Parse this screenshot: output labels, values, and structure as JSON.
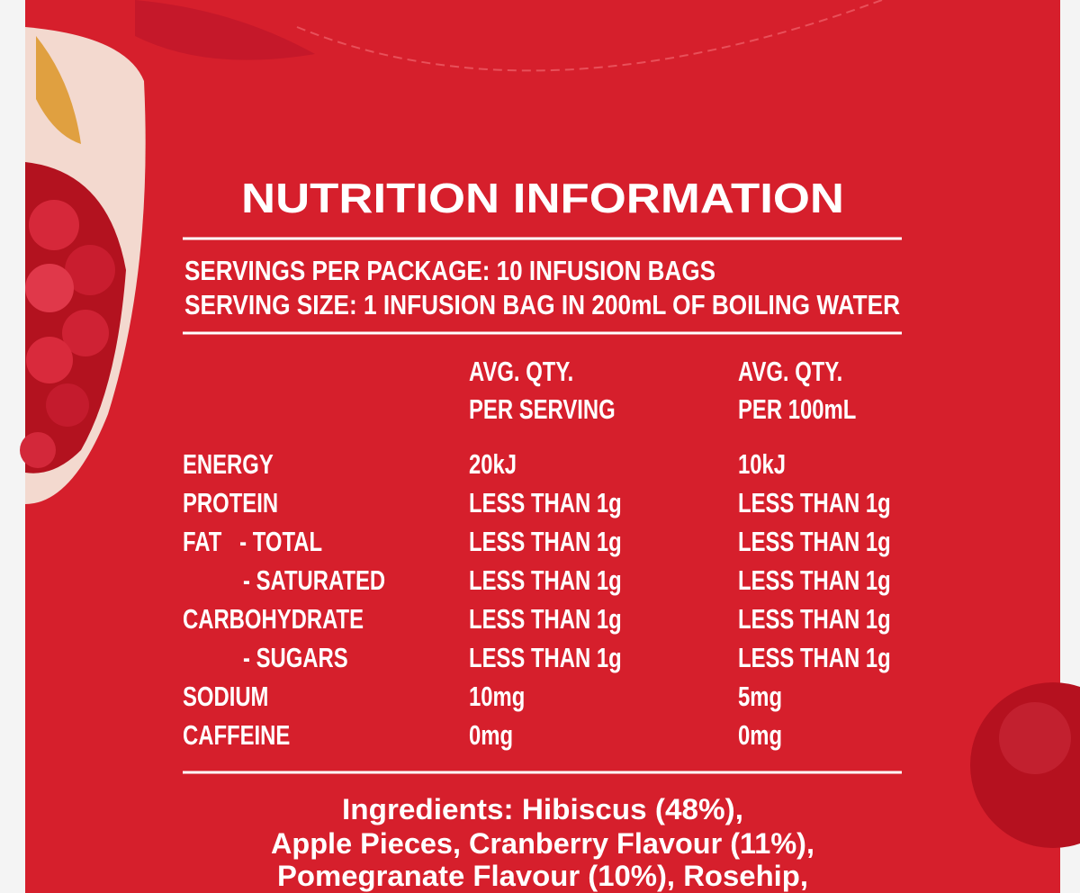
{
  "title": "NUTRITION INFORMATION",
  "servings": [
    "SERVINGS PER PACKAGE: 10 INFUSION BAGS",
    "SERVING SIZE: 1 INFUSION BAG IN 200mL OF BOILING WATER"
  ],
  "table": {
    "header": [
      [
        "AVG. QTY.",
        "PER SERVING"
      ],
      [
        "AVG. QTY.",
        "PER 100mL"
      ]
    ],
    "rows": [
      [
        "ENERGY",
        "20kJ",
        "10kJ"
      ],
      [
        "PROTEIN",
        "LESS THAN 1g",
        "LESS THAN 1g"
      ],
      [
        "FAT   - TOTAL",
        "LESS THAN 1g",
        "LESS THAN 1g"
      ],
      [
        "- SATURATED",
        "LESS THAN 1g",
        "LESS THAN 1g"
      ],
      [
        "CARBOHYDRATE",
        "LESS THAN 1g",
        "LESS THAN 1g"
      ],
      [
        "- SUGARS",
        "LESS THAN 1g",
        "LESS THAN 1g"
      ],
      [
        "SODIUM",
        "10mg",
        "5mg"
      ],
      [
        "CAFFEINE",
        "0mg",
        "0mg"
      ]
    ]
  },
  "ingredients": [
    "Ingredients: Hibiscus (48%),",
    "Apple Pieces, Cranberry Flavour (11%),",
    "Pomegranate Flavour (10%), Rosehip,"
  ]
}
